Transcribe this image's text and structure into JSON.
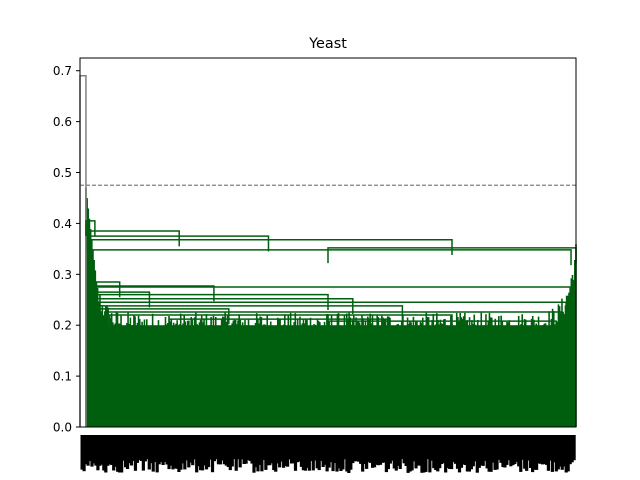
{
  "chart_data": {
    "type": "dendrogram",
    "title": "Yeast",
    "xlabel": "",
    "ylabel": "",
    "ylim": [
      0,
      0.725
    ],
    "y_ticks": [
      "0.0",
      "0.1",
      "0.2",
      "0.3",
      "0.4",
      "0.5",
      "0.6",
      "0.7"
    ],
    "y_tick_values": [
      0.0,
      0.1,
      0.2,
      0.3,
      0.4,
      0.5,
      0.6,
      0.7
    ],
    "threshold": 0.475,
    "root_height": 0.69,
    "grid": false,
    "legend": "none",
    "colors": {
      "cluster": "#005f0f",
      "above_threshold": "#808080",
      "threshold_line": "#808080",
      "axis": "#000000"
    },
    "merges": [
      {
        "height": 0.69,
        "from_frac": 0.0,
        "to_frac": 0.012,
        "color": "above_threshold"
      },
      {
        "height": 0.405,
        "from_frac": 0.012,
        "to_frac": 0.03,
        "color": "cluster"
      },
      {
        "height": 0.385,
        "from_frac": 0.015,
        "to_frac": 0.2,
        "color": "cluster"
      },
      {
        "height": 0.375,
        "from_frac": 0.015,
        "to_frac": 0.38,
        "color": "cluster"
      },
      {
        "height": 0.368,
        "from_frac": 0.02,
        "to_frac": 0.75,
        "color": "cluster"
      },
      {
        "height": 0.352,
        "from_frac": 0.5,
        "to_frac": 1.0,
        "color": "cluster"
      },
      {
        "height": 0.348,
        "from_frac": 0.02,
        "to_frac": 0.99,
        "color": "cluster"
      },
      {
        "height": 0.285,
        "from_frac": 0.02,
        "to_frac": 0.08,
        "color": "cluster"
      },
      {
        "height": 0.277,
        "from_frac": 0.03,
        "to_frac": 0.27,
        "color": "cluster"
      },
      {
        "height": 0.275,
        "from_frac": 0.02,
        "to_frac": 0.99,
        "color": "cluster"
      },
      {
        "height": 0.265,
        "from_frac": 0.02,
        "to_frac": 0.14,
        "color": "cluster"
      },
      {
        "height": 0.26,
        "from_frac": 0.02,
        "to_frac": 0.5,
        "color": "cluster"
      },
      {
        "height": 0.252,
        "from_frac": 0.03,
        "to_frac": 0.55,
        "color": "cluster"
      },
      {
        "height": 0.245,
        "from_frac": 0.03,
        "to_frac": 0.98,
        "color": "cluster"
      },
      {
        "height": 0.238,
        "from_frac": 0.04,
        "to_frac": 0.65,
        "color": "cluster"
      },
      {
        "height": 0.232,
        "from_frac": 0.04,
        "to_frac": 0.3,
        "color": "cluster"
      },
      {
        "height": 0.226,
        "from_frac": 0.05,
        "to_frac": 0.97,
        "color": "cluster"
      },
      {
        "height": 0.22,
        "from_frac": 0.06,
        "to_frac": 0.75,
        "color": "cluster"
      },
      {
        "height": 0.212,
        "from_frac": 0.18,
        "to_frac": 0.62,
        "color": "cluster"
      },
      {
        "height": 0.208,
        "from_frac": 0.5,
        "to_frac": 0.96,
        "color": "cluster"
      },
      {
        "height": 0.193,
        "from_frac": 0.74,
        "to_frac": 0.96,
        "color": "cluster"
      }
    ]
  }
}
